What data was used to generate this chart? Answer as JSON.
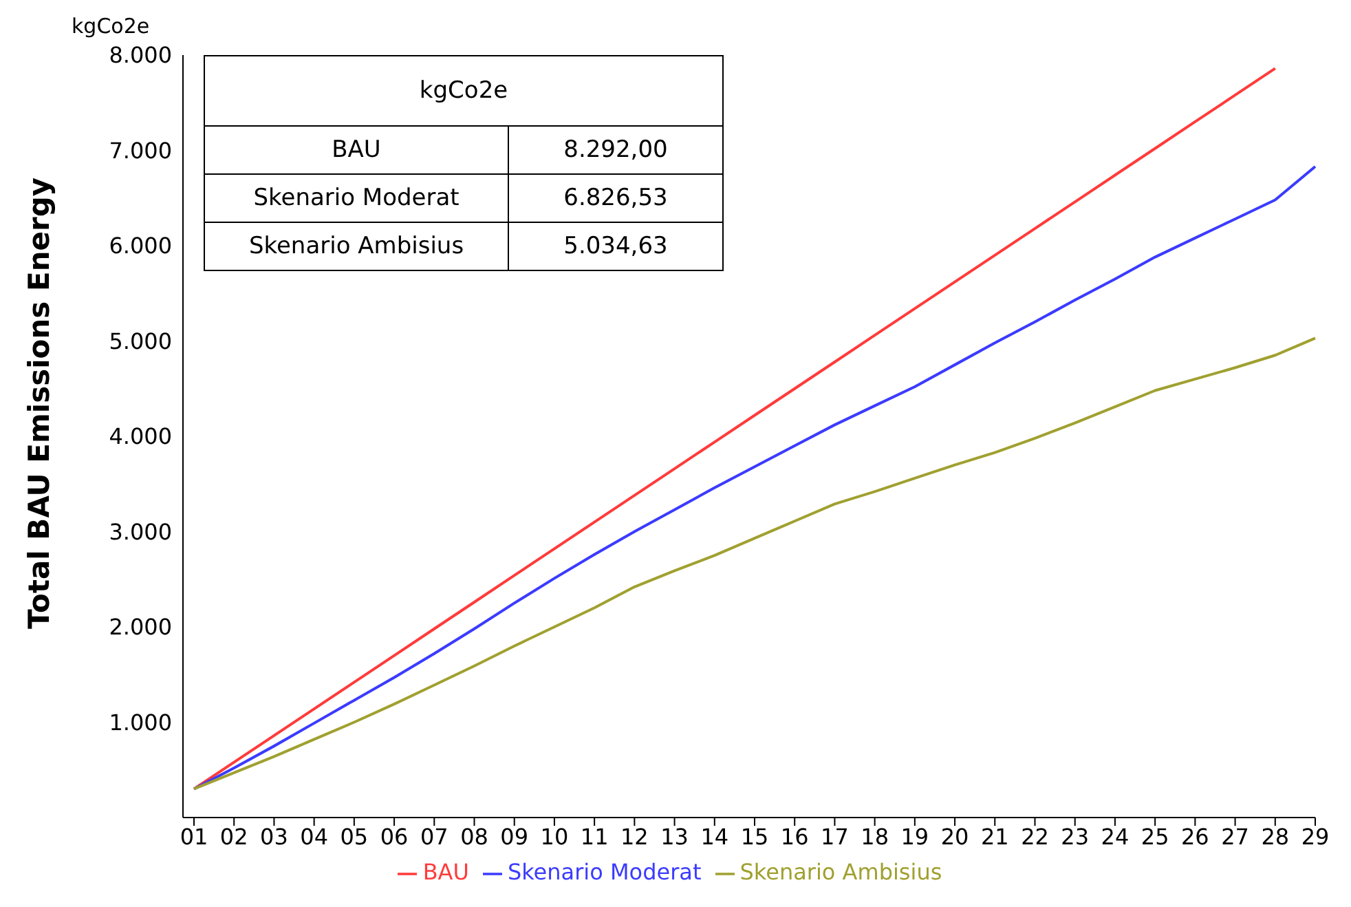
{
  "chart_data": {
    "type": "line",
    "ylabel": "Total BAU Emissions Energy",
    "categories": [
      "01",
      "02",
      "03",
      "04",
      "05",
      "06",
      "07",
      "08",
      "09",
      "10",
      "11",
      "12",
      "13",
      "14",
      "15",
      "16",
      "17",
      "18",
      "19",
      "20",
      "21",
      "22",
      "23",
      "24",
      "25",
      "26",
      "27",
      "28",
      "29"
    ],
    "series": [
      {
        "name": "BAU",
        "color": "#ff3b3b",
        "values": [
          300,
          580,
          860,
          1140,
          1420,
          1700,
          1980,
          2260,
          2540,
          2820,
          3100,
          3380,
          3660,
          3940,
          4220,
          4500,
          4780,
          5060,
          5340,
          5620,
          5900,
          6180,
          6460,
          6740,
          7020,
          7300,
          7580,
          7860,
          null
        ]
      },
      {
        "name": "Skenario Moderat",
        "color": "#3b3bff",
        "values": [
          300,
          520,
          750,
          990,
          1230,
          1470,
          1720,
          1980,
          2250,
          2510,
          2760,
          3000,
          3230,
          3460,
          3680,
          3900,
          4120,
          4320,
          4520,
          4750,
          4980,
          5200,
          5430,
          5650,
          5880,
          6080,
          6280,
          6480,
          6830
        ]
      },
      {
        "name": "Skenario Ambisius",
        "color": "#a0a030",
        "values": [
          300,
          470,
          640,
          820,
          1000,
          1190,
          1390,
          1590,
          1800,
          2000,
          2200,
          2420,
          2590,
          2750,
          2930,
          3110,
          3290,
          3420,
          3560,
          3700,
          3830,
          3980,
          4140,
          4310,
          4480,
          4600,
          4720,
          4850,
          5030
        ]
      }
    ],
    "ylim": [
      0,
      8000
    ],
    "yticks": [
      {
        "value": 1000,
        "label": "1.000"
      },
      {
        "value": 2000,
        "label": "2.000"
      },
      {
        "value": 3000,
        "label": "3.000"
      },
      {
        "value": 4000,
        "label": "4.000"
      },
      {
        "value": 5000,
        "label": "5.000"
      },
      {
        "value": 6000,
        "label": "6.000"
      },
      {
        "value": 7000,
        "label": "7.000"
      },
      {
        "value": 8000,
        "label": "8.000"
      }
    ],
    "annotations": [
      "kgCo2e",
      "kgCo2e",
      "BAU",
      "8.292,00",
      "Skenario Moderat",
      "6.826,53",
      "Skenario Ambisius",
      "5.034,63"
    ],
    "grid": false,
    "legend": "bottom",
    "marker": "none",
    "line_style": "solid"
  }
}
